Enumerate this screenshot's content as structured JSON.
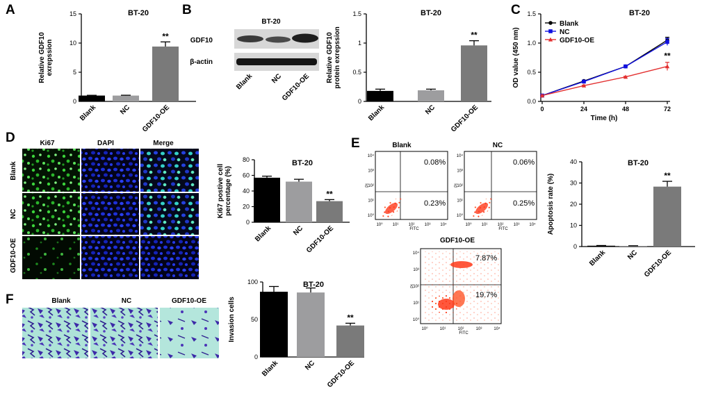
{
  "panels": {
    "A": {
      "letter": "A"
    },
    "B": {
      "letter": "B",
      "blot_sample": "BT-20",
      "blot_rows": [
        "GDF10",
        "β-actin"
      ],
      "blot_lanes": [
        "Blank",
        "NC",
        "GDF10-OE"
      ]
    },
    "C": {
      "letter": "C"
    },
    "D": {
      "letter": "D",
      "columns": [
        "Ki67",
        "DAPI",
        "Merge"
      ],
      "rows": [
        "Blank",
        "NC",
        "GDF10-OE"
      ]
    },
    "E": {
      "letter": "E",
      "plots": [
        {
          "title": "Blank",
          "upper": "0.08%",
          "lower": "0.23%"
        },
        {
          "title": "NC",
          "upper": "0.06%",
          "lower": "0.25%"
        },
        {
          "title": "GDF10-OE",
          "upper": "7.87%",
          "lower": "19.7%"
        }
      ],
      "x_axis": "FITC",
      "y_axis": "PI",
      "x_ticks": [
        "10⁰",
        "10¹",
        "10²",
        "10³",
        "10⁴"
      ],
      "y_ticks": [
        "10⁰",
        "10¹",
        "10²",
        "10³",
        "10⁴"
      ]
    },
    "F": {
      "letter": "F",
      "columns": [
        "Blank",
        "NC",
        "GDF10-OE"
      ]
    }
  },
  "chart_data": [
    {
      "id": "A",
      "type": "bar",
      "title": "BT-20",
      "categories": [
        "Blank",
        "NC",
        "GDF10-OE"
      ],
      "values": [
        1.0,
        1.0,
        9.4
      ],
      "errors": [
        0.05,
        0.06,
        0.8
      ],
      "ylabel": "Relative GDF10 exrepssion",
      "ylim": [
        0,
        15
      ],
      "yticks": [
        0,
        5,
        10,
        15
      ],
      "significance": [
        "",
        "",
        "**"
      ],
      "colors": [
        "#000000",
        "#9d9d9f",
        "#7a7a7a"
      ]
    },
    {
      "id": "B",
      "type": "bar",
      "title": "BT-20",
      "categories": [
        "Blank",
        "NC",
        "GDF10-OE"
      ],
      "values": [
        0.18,
        0.19,
        0.96
      ],
      "errors": [
        0.03,
        0.02,
        0.08
      ],
      "ylabel": "Relative GDF10 protein exrepssion",
      "ylim": [
        0,
        1.5
      ],
      "yticks": [
        0.0,
        0.5,
        1.0,
        1.5
      ],
      "significance": [
        "",
        "",
        "**"
      ],
      "colors": [
        "#000000",
        "#9d9d9f",
        "#7a7a7a"
      ]
    },
    {
      "id": "C",
      "type": "line",
      "title": "BT-20",
      "x": [
        0,
        24,
        48,
        72
      ],
      "series": [
        {
          "name": "Blank",
          "values": [
            0.1,
            0.35,
            0.6,
            1.05
          ],
          "errors": [
            0.01,
            0.01,
            0.02,
            0.05
          ],
          "color": "#000000",
          "marker": "circle"
        },
        {
          "name": "NC",
          "values": [
            0.1,
            0.34,
            0.6,
            1.02
          ],
          "errors": [
            0.01,
            0.01,
            0.02,
            0.06
          ],
          "color": "#1010e0",
          "marker": "square"
        },
        {
          "name": "GDF10-OE",
          "values": [
            0.1,
            0.27,
            0.42,
            0.6
          ],
          "errors": [
            0.01,
            0.01,
            0.01,
            0.07
          ],
          "color": "#e33030",
          "marker": "triangle"
        }
      ],
      "xlabel": "Time (h)",
      "ylabel": "OD value (450 nm)",
      "xlim": [
        0,
        72
      ],
      "ylim": [
        0,
        1.5
      ],
      "xticks": [
        0,
        24,
        48,
        72
      ],
      "yticks": [
        0.0,
        0.5,
        1.0,
        1.5
      ],
      "significance": "**"
    },
    {
      "id": "D",
      "type": "bar",
      "title": "BT-20",
      "categories": [
        "Blank",
        "NC",
        "GDF10-OE"
      ],
      "values": [
        57,
        52,
        27
      ],
      "errors": [
        2,
        3,
        2
      ],
      "ylabel": "Ki67 postive cell percentage (%)",
      "ylim": [
        0,
        80
      ],
      "yticks": [
        0,
        20,
        40,
        60,
        80
      ],
      "significance": [
        "",
        "",
        "**"
      ],
      "colors": [
        "#000000",
        "#9d9d9f",
        "#7a7a7a"
      ]
    },
    {
      "id": "E",
      "type": "bar",
      "title": "BT-20",
      "categories": [
        "Blank",
        "NC",
        "GDF10-OE"
      ],
      "values": [
        0.4,
        0.3,
        28.3
      ],
      "errors": [
        0.1,
        0.1,
        2.5
      ],
      "ylabel": "Apoptosis rate (%)",
      "ylim": [
        0,
        40
      ],
      "yticks": [
        0,
        10,
        20,
        30,
        40
      ],
      "significance": [
        "",
        "",
        "**"
      ],
      "colors": [
        "#000000",
        "#9d9d9f",
        "#7a7a7a"
      ]
    },
    {
      "id": "F",
      "type": "bar",
      "title": "BT-20",
      "categories": [
        "Blank",
        "NC",
        "GDF10-OE"
      ],
      "values": [
        87,
        86,
        42
      ],
      "errors": [
        7,
        6,
        3
      ],
      "ylabel": "Invasion cells",
      "ylim": [
        0,
        100
      ],
      "yticks": [
        0,
        50,
        100
      ],
      "significance": [
        "",
        "",
        "**"
      ],
      "colors": [
        "#000000",
        "#9d9d9f",
        "#7a7a7a"
      ]
    }
  ]
}
